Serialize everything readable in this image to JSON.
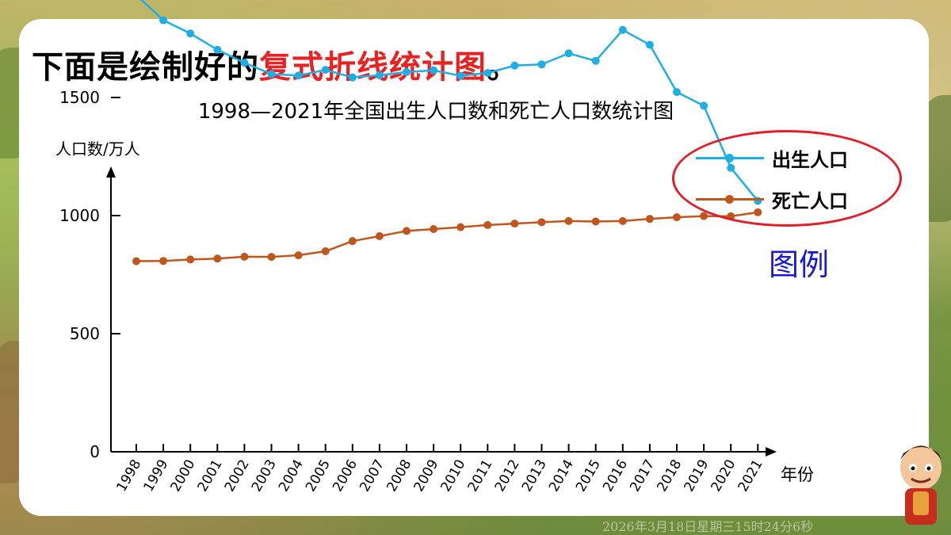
{
  "heading": {
    "prefix": "下面是绘制好的",
    "highlight": "复式折线统计图",
    "suffix": "。"
  },
  "legend_caption": "图例",
  "timestamp": "2026年3月18日星期三15时24分6秒",
  "colors": {
    "birth": "#1eaee6",
    "death": "#c0561c",
    "highlight": "#e82121",
    "legend_circle": "#e01f2a",
    "legend_caption": "#1818d4"
  },
  "chart_data": {
    "type": "line",
    "title": "1998—2021年全国出生人口数和死亡人口数统计图",
    "xlabel": "年份",
    "ylabel": "人口数/万人",
    "categories": [
      "1998",
      "1999",
      "2000",
      "2001",
      "2002",
      "2003",
      "2004",
      "2005",
      "2006",
      "2007",
      "2008",
      "2009",
      "2010",
      "2011",
      "2012",
      "2013",
      "2014",
      "2015",
      "2016",
      "2017",
      "2018",
      "2019",
      "2020",
      "2021"
    ],
    "yticks": [
      "0",
      "500",
      "1000",
      "1500",
      "2000"
    ],
    "ylim": [
      0,
      2000
    ],
    "legend_position": "top-right",
    "series": [
      {
        "name": "出生人口",
        "color": "#1eaee6",
        "values": [
          1934,
          1827,
          1771,
          1702,
          1647,
          1599,
          1593,
          1617,
          1585,
          1594,
          1608,
          1615,
          1592,
          1604,
          1635,
          1640,
          1687,
          1655,
          1786,
          1723,
          1523,
          1465,
          1202,
          1062
        ]
      },
      {
        "name": "死亡人口",
        "color": "#c0561c",
        "values": [
          807,
          808,
          814,
          818,
          826,
          825,
          832,
          849,
          892,
          913,
          935,
          943,
          951,
          960,
          966,
          972,
          977,
          975,
          977,
          986,
          993,
          998,
          997,
          1014
        ]
      }
    ]
  }
}
